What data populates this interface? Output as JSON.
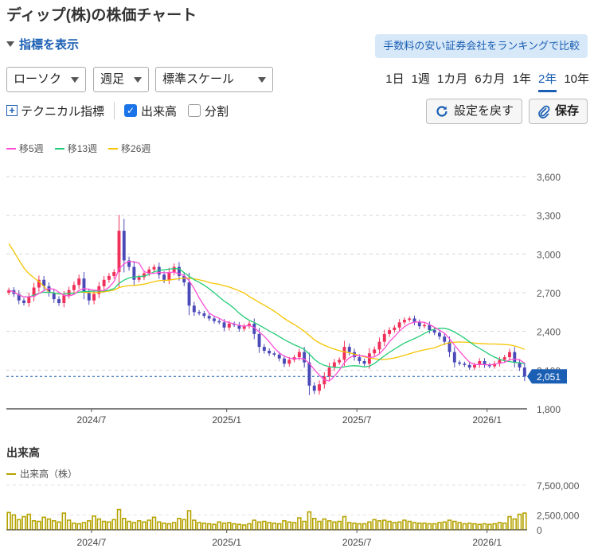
{
  "page": {
    "title": "ディップ(株)の株価チャート"
  },
  "toolbar": {
    "indicator_toggle": "指標を表示",
    "promo": "手数料の安い証券会社をランキングで比較",
    "chart_type": "ローソク",
    "interval": "週足",
    "scale": "標準スケール",
    "periods": [
      "1日",
      "1週",
      "1カ月",
      "6カ月",
      "1年",
      "2年",
      "10年"
    ],
    "active_period": "2年",
    "technical": "テクニカル指標",
    "volume_check": "出来高",
    "split_check": "分割",
    "reset": "設定を戻す",
    "save": "保存"
  },
  "colors": {
    "up": "#f0305a",
    "down": "#4a49b8",
    "ma5": "#ff4fd6",
    "ma13": "#22cc77",
    "ma26": "#f5c400",
    "volume": "#b5a300",
    "accent": "#1a5fb4"
  },
  "volume_panel": {
    "title": "出来高",
    "legend": "出来高（株）"
  },
  "chart_data": {
    "type": "candlestick",
    "interval": "weekly",
    "start_week": "2024-03-04",
    "legend": [
      "移5週",
      "移13週",
      "移26週"
    ],
    "ylim": [
      1800,
      3600
    ],
    "yticks": [
      1800,
      2100,
      2400,
      2700,
      3000,
      3300,
      3600
    ],
    "ytick_labels": [
      "1,800",
      "2,100",
      "2,400",
      "2,700",
      "3,000",
      "3,300",
      "3,600"
    ],
    "xtick_labels": [
      {
        "date": "2024-07-01",
        "label": "2024/7"
      },
      {
        "date": "2025-01-06",
        "label": "2025/1"
      },
      {
        "date": "2025-07-07",
        "label": "2025/7"
      },
      {
        "date": "2026-01-05",
        "label": "2026/1"
      }
    ],
    "last_price": 2051,
    "last_price_label": "2,051",
    "close": [
      2720,
      2690,
      2640,
      2620,
      2670,
      2740,
      2800,
      2750,
      2700,
      2650,
      2620,
      2680,
      2720,
      2760,
      2810,
      2700,
      2640,
      2690,
      2750,
      2800,
      2830,
      2860,
      3180,
      2950,
      2900,
      2800,
      2820,
      2850,
      2880,
      2900,
      2840,
      2800,
      2860,
      2900,
      2830,
      2780,
      2600,
      2550,
      2540,
      2520,
      2500,
      2480,
      2470,
      2430,
      2460,
      2450,
      2420,
      2440,
      2460,
      2380,
      2280,
      2250,
      2230,
      2220,
      2190,
      2150,
      2180,
      2200,
      2240,
      2160,
      1980,
      1940,
      1990,
      2050,
      2120,
      2160,
      2180,
      2280,
      2240,
      2200,
      2170,
      2150,
      2230,
      2260,
      2320,
      2380,
      2410,
      2430,
      2470,
      2490,
      2500,
      2470,
      2440,
      2450,
      2410,
      2390,
      2360,
      2320,
      2240,
      2160,
      2150,
      2140,
      2120,
      2140,
      2170,
      2140,
      2130,
      2150,
      2180,
      2200,
      2240,
      2160,
      2120,
      2051
    ],
    "volume": [
      2900000,
      2500000,
      1700000,
      2200000,
      2600000,
      1500000,
      1400000,
      2100000,
      1800000,
      1500000,
      1300000,
      2800000,
      1600000,
      1100000,
      1000000,
      1200000,
      1500000,
      2300000,
      1800000,
      1400000,
      1300000,
      1700000,
      3400000,
      1900000,
      1400000,
      1200000,
      1500000,
      1300000,
      1600000,
      2100000,
      1300000,
      1100000,
      1000000,
      1200000,
      1900000,
      1700000,
      3200000,
      1600000,
      1200000,
      1100000,
      1000000,
      900000,
      1300000,
      1100000,
      1200000,
      1000000,
      900000,
      800000,
      1000000,
      1600000,
      1300000,
      1400000,
      1200000,
      1100000,
      1000000,
      1500000,
      1300000,
      1200000,
      2000000,
      1400000,
      3000000,
      1900000,
      1400000,
      1800000,
      1500000,
      1300000,
      1400000,
      2200000,
      1200000,
      1100000,
      1000000,
      1000000,
      1300000,
      1700000,
      1500000,
      1600000,
      1400000,
      1200000,
      1300000,
      1600000,
      1400000,
      1200000,
      1100000,
      1100000,
      1000000,
      1000000,
      1200000,
      1300000,
      1600000,
      1400000,
      1200000,
      1000000,
      1100000,
      1000000,
      900000,
      1000000,
      900000,
      1000000,
      1200000,
      1100000,
      2200000,
      1800000,
      2600000,
      2800000
    ],
    "ma5_label": "移5週",
    "ma13_label": "移13週",
    "ma26_label": "移26週",
    "volume_ylim": [
      0,
      7500000
    ],
    "volume_yticks": [
      0,
      2500000,
      7500000
    ],
    "volume_ytick_labels": [
      "0",
      "2,500,000",
      "7,500,000"
    ]
  }
}
